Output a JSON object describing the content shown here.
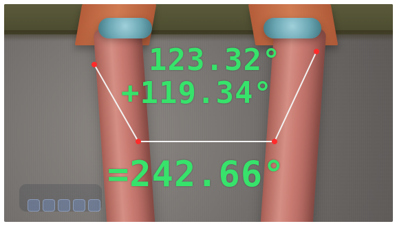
{
  "ui": {
    "toolbar_title": "",
    "toolbar_items": [
      "",
      "",
      "",
      "",
      ""
    ]
  },
  "annotation": {
    "angle_1": "123.32°",
    "angle_2": "+119.34°",
    "sum": "=242.66°"
  },
  "colors": {
    "annotation": "#37e36b",
    "measurement_line": "#f3f3f3",
    "endpoint": "#ff2b2b"
  }
}
